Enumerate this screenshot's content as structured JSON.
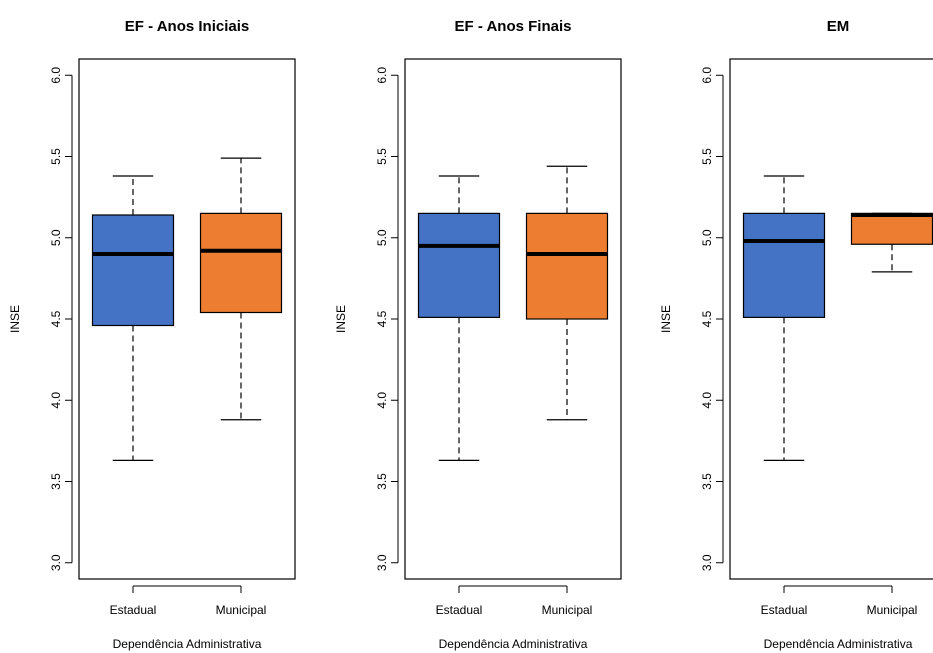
{
  "chart_data": [
    {
      "type": "boxplot",
      "title": "EF - Anos Iniciais",
      "xlabel": "Dependência Administrativa",
      "ylabel": "INSE",
      "ylim": [
        2.9,
        6.1
      ],
      "yticks": [
        "3.0",
        "3.5",
        "4.0",
        "4.5",
        "5.0",
        "5.5",
        "6.0"
      ],
      "categories": [
        "Estadual",
        "Municipal"
      ],
      "colors": [
        "#4472C4",
        "#ED7D31"
      ],
      "boxes": [
        {
          "category": "Estadual",
          "min": 3.63,
          "q1": 4.46,
          "median": 4.9,
          "q3": 5.14,
          "max": 5.38
        },
        {
          "category": "Municipal",
          "min": 3.88,
          "q1": 4.54,
          "median": 4.92,
          "q3": 5.15,
          "max": 5.49
        }
      ]
    },
    {
      "type": "boxplot",
      "title": "EF - Anos Finais",
      "xlabel": "Dependência Administrativa",
      "ylabel": "INSE",
      "ylim": [
        2.9,
        6.1
      ],
      "yticks": [
        "3.0",
        "3.5",
        "4.0",
        "4.5",
        "5.0",
        "5.5",
        "6.0"
      ],
      "categories": [
        "Estadual",
        "Municipal"
      ],
      "colors": [
        "#4472C4",
        "#ED7D31"
      ],
      "boxes": [
        {
          "category": "Estadual",
          "min": 3.63,
          "q1": 4.51,
          "median": 4.95,
          "q3": 5.15,
          "max": 5.38
        },
        {
          "category": "Municipal",
          "min": 3.88,
          "q1": 4.5,
          "median": 4.9,
          "q3": 5.15,
          "max": 5.44
        }
      ]
    },
    {
      "type": "boxplot",
      "title": "EM",
      "xlabel": "Dependência Administrativa",
      "ylabel": "INSE",
      "ylim": [
        2.9,
        6.1
      ],
      "yticks": [
        "3.0",
        "3.5",
        "4.0",
        "4.5",
        "5.0",
        "5.5",
        "6.0"
      ],
      "categories": [
        "Estadual",
        "Municipal"
      ],
      "colors": [
        "#4472C4",
        "#ED7D31"
      ],
      "boxes": [
        {
          "category": "Estadual",
          "min": 3.63,
          "q1": 4.51,
          "median": 4.98,
          "q3": 5.15,
          "max": 5.38
        },
        {
          "category": "Municipal",
          "min": 4.79,
          "q1": 4.96,
          "median": 5.14,
          "q3": 5.15,
          "max": 5.15
        }
      ]
    }
  ]
}
